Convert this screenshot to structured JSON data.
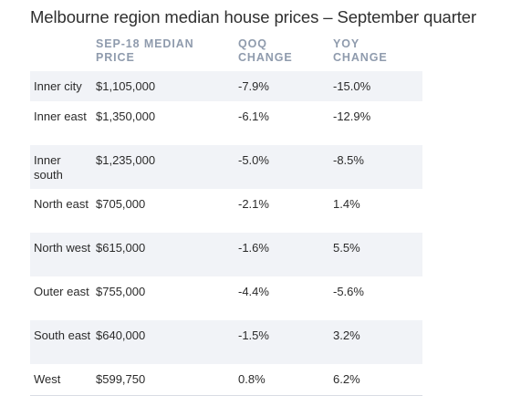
{
  "title": "Melbourne region median house prices – September quarter",
  "columns": [
    "SEP-18 MEDIAN PRICE",
    "QOQ CHANGE",
    "YOY CHANGE"
  ],
  "column_lines": [
    [
      "SEP-18 MEDIAN",
      "PRICE"
    ],
    [
      "QOQ",
      "CHANGE"
    ],
    [
      "YOY",
      "CHANGE"
    ]
  ],
  "rows": [
    {
      "region": "Inner city",
      "price": "$1,105,000",
      "qoq": "-7.9%",
      "yoy": "-15.0%"
    },
    {
      "region": "Inner east",
      "price": "$1,350,000",
      "qoq": "-6.1%",
      "yoy": "-12.9%"
    },
    {
      "region": "Inner south",
      "price": "$1,235,000",
      "qoq": "-5.0%",
      "yoy": "-8.5%"
    },
    {
      "region": "North east",
      "price": "$705,000",
      "qoq": "-2.1%",
      "yoy": "1.4%"
    },
    {
      "region": "North west",
      "price": "$615,000",
      "qoq": "-1.6%",
      "yoy": "5.5%"
    },
    {
      "region": "Outer east",
      "price": "$755,000",
      "qoq": "-4.4%",
      "yoy": "-5.6%"
    },
    {
      "region": "South east",
      "price": "$640,000",
      "qoq": "-1.5%",
      "yoy": "3.2%"
    },
    {
      "region": "West",
      "price": "$599,750",
      "qoq": "0.8%",
      "yoy": "6.2%"
    }
  ],
  "colors": {
    "header_text": "#8f9bad",
    "stripe": "#f1f3f7",
    "body_text": "#2b2b2b"
  },
  "chart_data": {
    "type": "table",
    "title": "Melbourne region median house prices – September quarter",
    "columns": [
      "",
      "SEP-18 MEDIAN PRICE",
      "QOQ CHANGE",
      "YOY CHANGE"
    ],
    "rows": [
      [
        "Inner city",
        "$1,105,000",
        "-7.9%",
        "-15.0%"
      ],
      [
        "Inner east",
        "$1,350,000",
        "-6.1%",
        "-12.9%"
      ],
      [
        "Inner south",
        "$1,235,000",
        "-5.0%",
        "-8.5%"
      ],
      [
        "North east",
        "$705,000",
        "-2.1%",
        "1.4%"
      ],
      [
        "North west",
        "$615,000",
        "-1.6%",
        "5.5%"
      ],
      [
        "Outer east",
        "$755,000",
        "-4.4%",
        "-5.6%"
      ],
      [
        "South east",
        "$640,000",
        "-1.5%",
        "3.2%"
      ],
      [
        "West",
        "$599,750",
        "0.8%",
        "6.2%"
      ]
    ]
  }
}
